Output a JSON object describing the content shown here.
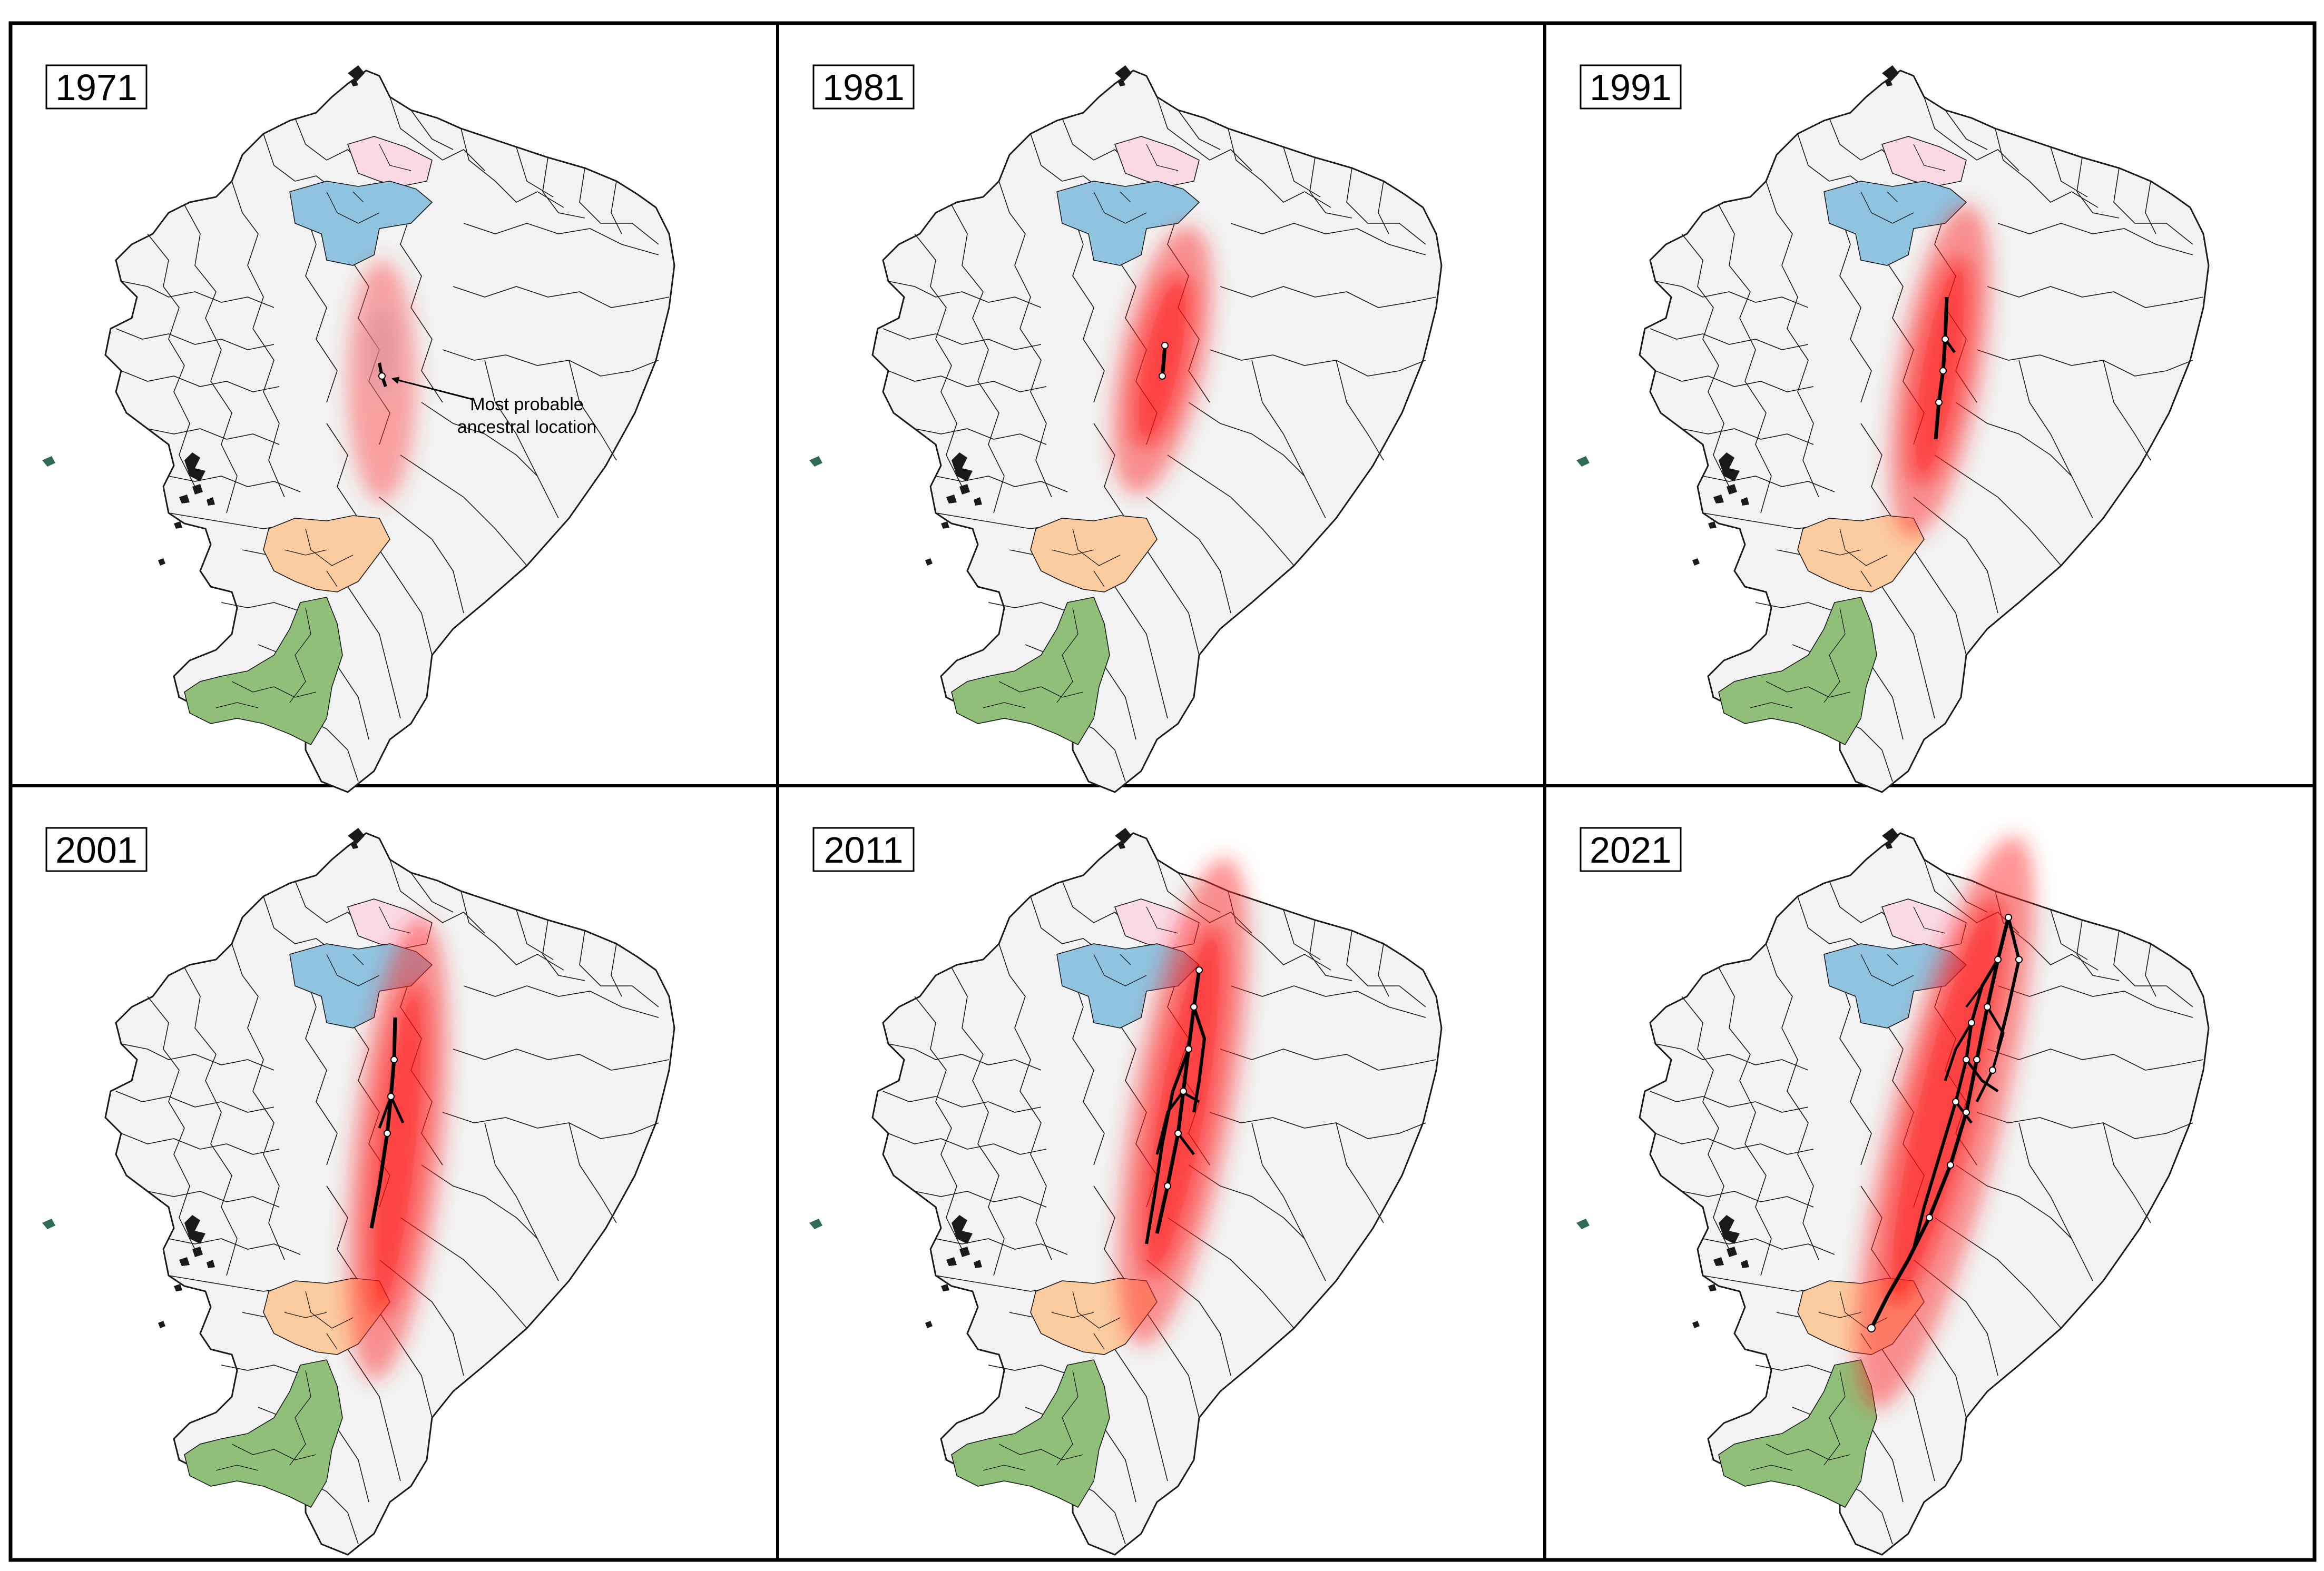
{
  "figure": {
    "panels": [
      {
        "year": "1971",
        "stage": 0
      },
      {
        "year": "1981",
        "stage": 1
      },
      {
        "year": "1991",
        "stage": 2
      },
      {
        "year": "2001",
        "stage": 3
      },
      {
        "year": "2011",
        "stage": 4
      },
      {
        "year": "2021",
        "stage": 5
      }
    ],
    "annotation": {
      "line1": "Most probable",
      "line2": "ancestral location"
    },
    "colors": {
      "map_fill": "#f2f2f2",
      "border": "#1a1a1a",
      "pink_region": "#f9d9e6",
      "blue_region": "#8fc3e0",
      "orange_region": "#fbcba0",
      "green_region": "#8fbf79",
      "hpd_red": "#ff1a1a",
      "lineage": "#000000",
      "node": "#ffffff"
    }
  }
}
